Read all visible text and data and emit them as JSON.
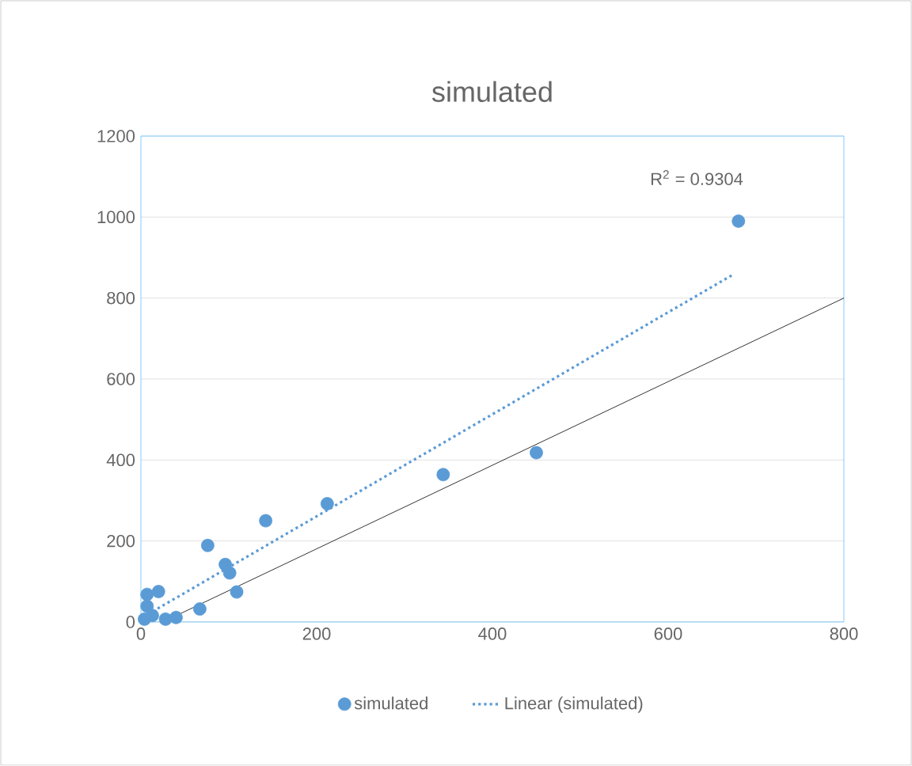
{
  "chart_data": {
    "type": "scatter",
    "title": "simulated",
    "xlim": [
      0,
      800
    ],
    "xticks": [
      0,
      200,
      400,
      600,
      800
    ],
    "ylim": [
      0,
      1200
    ],
    "yticks": [
      0,
      200,
      400,
      600,
      800,
      1000,
      1200
    ],
    "grid": "y",
    "legend": "bottom",
    "annotations": [
      "R$^{2}$ = 0.9304"
    ],
    "series": [
      {
        "name": "simulated",
        "marker": "circle",
        "color": "#5b9bd5",
        "x": [
          680,
          450,
          344,
          212,
          142,
          76,
          96,
          101,
          109,
          67,
          20,
          7,
          7,
          4,
          40,
          28,
          13
        ],
        "values": [
          990,
          418,
          364,
          292,
          250,
          189,
          142,
          121,
          74,
          32,
          75,
          68,
          39,
          7,
          11,
          7,
          16
        ]
      },
      {
        "name": "Linear (simulated)",
        "type": "line",
        "marker": "none",
        "line_style": "dotted",
        "color": "#5b9bd5",
        "x": [
          19,
          674
        ],
        "values": [
          33,
          858
        ]
      },
      {
        "type": "line",
        "marker": "none",
        "line_style": "solid",
        "color": "#000000",
        "x": [
          25,
          800
        ],
        "values": [
          0,
          800
        ]
      }
    ]
  }
}
